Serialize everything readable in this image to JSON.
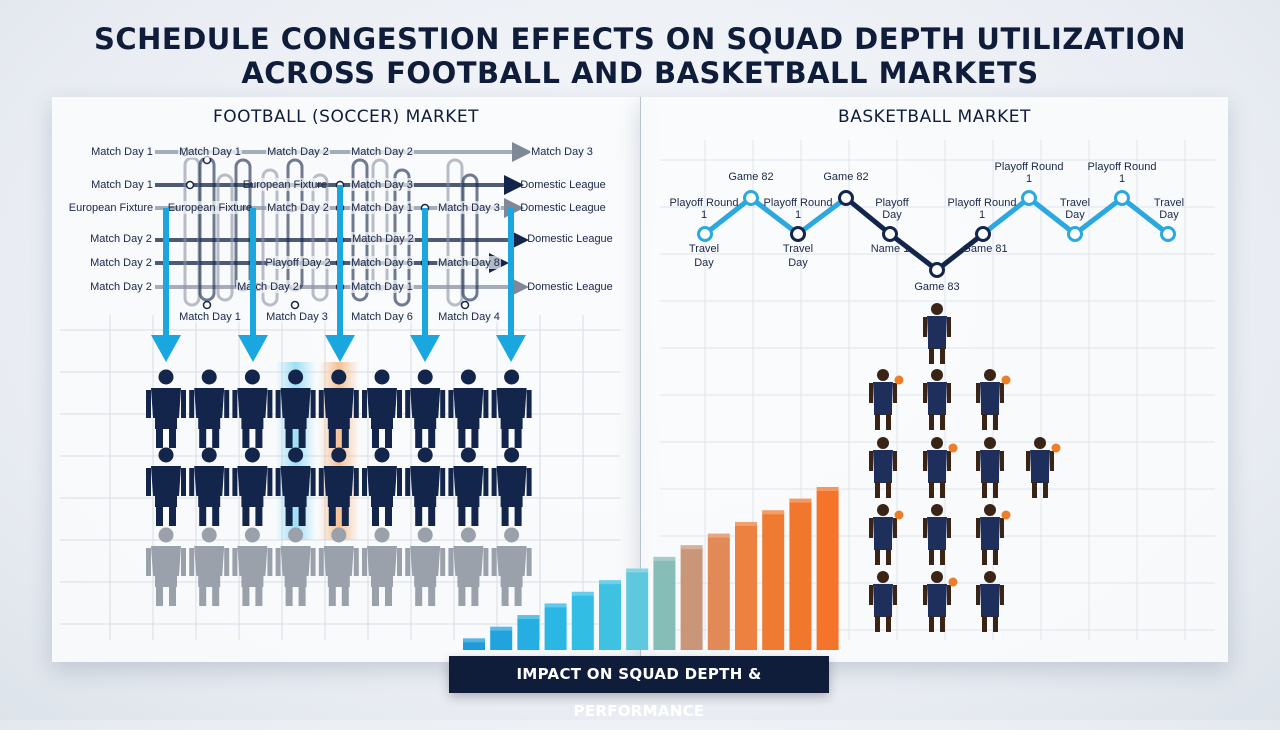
{
  "title_line1": "SCHEDULE CONGESTION EFFECTS ON SQUAD DEPTH UTILIZATION",
  "title_line2": "ACROSS FOOTBALL AND BASKETBALL MARKETS",
  "football": {
    "title": "FOOTBALL (SOCCER) MARKET",
    "labels": [
      "Match Day 1",
      "Match Day 1",
      "Match Day 2",
      "Match Day 2",
      "Match Day 3",
      "Match Day 1",
      "European Fixture",
      "Match Day 3",
      "Domestic League",
      "European Fixture",
      "European Fixture",
      "Match Day 2",
      "Match Day 1",
      "Match Day 3",
      "Domestic League",
      "Match Day 2",
      "Match Day 2",
      "Domestic League",
      "Match Day 2",
      "Playoff Day 2",
      "Match Day 6",
      "Match Day 8",
      "Match Day 2",
      "Match Day 2",
      "Match Day 1",
      "Domestic League",
      "Match Day 1",
      "Match Day 3",
      "Match Day 6",
      "Match Day 4"
    ],
    "squad": {
      "columns": 9,
      "rows": 3,
      "highlight_columns": [
        4,
        5
      ],
      "highlight_colors": [
        "#7fd6f2",
        "#f5b27a"
      ],
      "colors": {
        "starter": "#13254a",
        "reserve": "#9aa1ab"
      }
    }
  },
  "basketball": {
    "title": "BASKETBALL MARKET",
    "nodes": [
      {
        "label": "Travel Day",
        "type": "light"
      },
      {
        "label": "Playoff Round 1",
        "type": "light"
      },
      {
        "label": "Game 82",
        "type": "light"
      },
      {
        "label": "Playoff Round 1",
        "type": "dark"
      },
      {
        "label": "Travel Day",
        "type": "dark"
      },
      {
        "label": "Game 82",
        "type": "dark"
      },
      {
        "label": "Playoff Day",
        "type": "dark"
      },
      {
        "label": "Name 1",
        "type": "dark"
      },
      {
        "label": "Game 83",
        "type": "dark"
      },
      {
        "label": "Playoff Round 1",
        "type": "dark"
      },
      {
        "label": "Game 81",
        "type": "dark"
      },
      {
        "label": "Playoff Round 1",
        "type": "light"
      },
      {
        "label": "Travel Day",
        "type": "light"
      },
      {
        "label": "Playoff Round 1",
        "type": "dark"
      },
      {
        "label": "Travel Day",
        "type": "light"
      }
    ],
    "players_per_row": [
      1,
      3,
      4,
      3,
      3
    ],
    "colors": {
      "jersey": "#1f2f5c",
      "skin": "#3a2416",
      "ball": "#ee7d2a",
      "line_light": "#2aa8df",
      "line_dark": "#13254a"
    }
  },
  "impact": {
    "label": "IMPACT ON SQUAD DEPTH & PERFORMANCE",
    "values": [
      1,
      2,
      3,
      4,
      5,
      6,
      7,
      8,
      9,
      10,
      11,
      12,
      13,
      14
    ],
    "colors": [
      "#1e9bd8",
      "#21a3dd",
      "#25aee2",
      "#2bb6e4",
      "#32bde4",
      "#3fc2e2",
      "#5ec8de",
      "#86bdb6",
      "#c9967a",
      "#e18a57",
      "#ec8140",
      "#ef7b33",
      "#f1772d",
      "#f3742a"
    ]
  }
}
